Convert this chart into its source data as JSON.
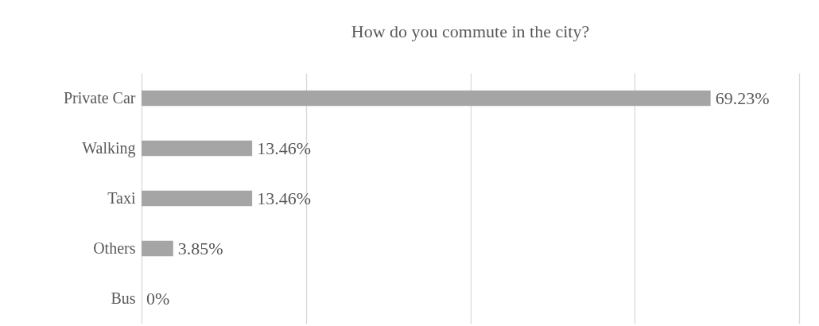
{
  "chart_data": {
    "type": "bar",
    "orientation": "horizontal",
    "title": "How do you commute in the city?",
    "categories": [
      "Private Car",
      "Walking",
      "Taxi",
      "Others",
      "Bus"
    ],
    "values": [
      69.23,
      13.46,
      13.46,
      3.85,
      0
    ],
    "value_labels": [
      "69.23%",
      "13.46%",
      "13.46%",
      "3.85%",
      "0%"
    ],
    "color": "#a5a5a5",
    "xlim": [
      0,
      80
    ],
    "xticks": [
      {
        "value": 0,
        "label": null
      },
      {
        "value": 20,
        "label": null
      },
      {
        "value": 40,
        "label": null
      },
      {
        "value": 60,
        "label": null
      },
      {
        "value": 80,
        "label": null
      }
    ],
    "grid": "x",
    "tick_labels": "y"
  }
}
